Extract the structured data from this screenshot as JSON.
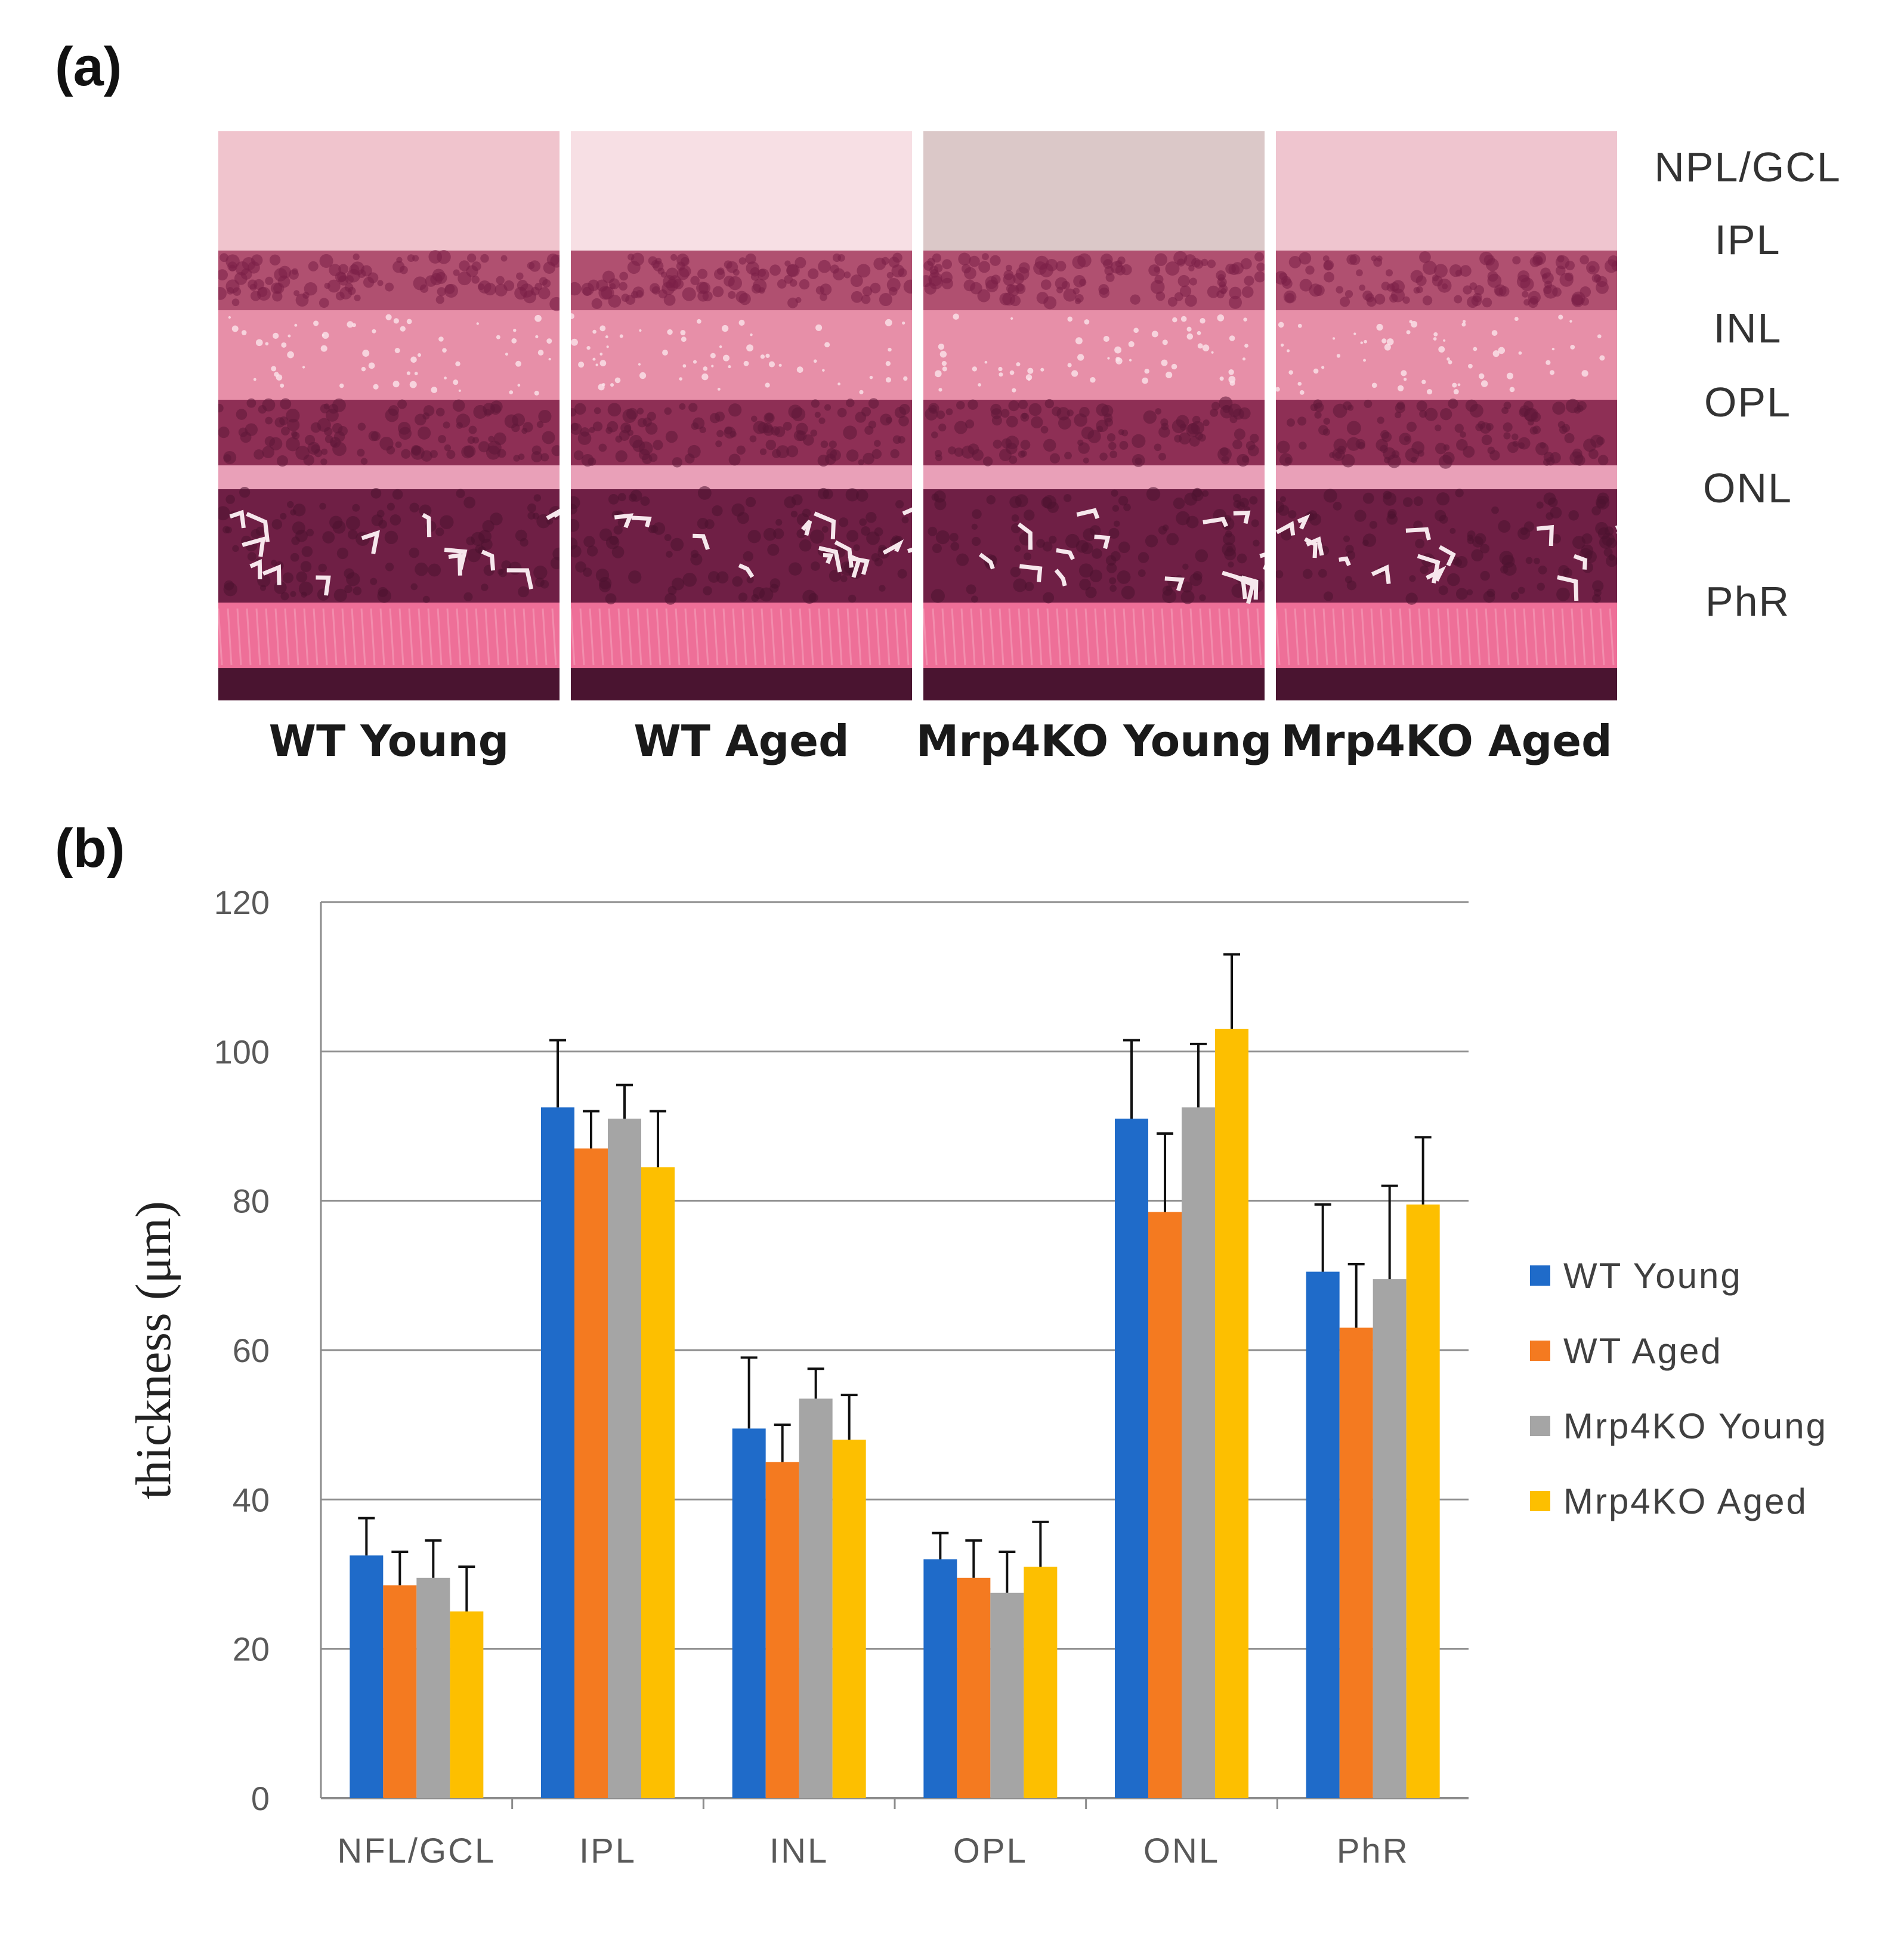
{
  "panel_a": {
    "label": "(a)",
    "captions": [
      "WT Young",
      "WT Aged",
      "Mrp4KO Young",
      "Mrp4KO Aged"
    ],
    "layer_labels": [
      "NPL/GCL",
      "IPL",
      "INL",
      "OPL",
      "ONL",
      "PhR"
    ]
  },
  "panel_b": {
    "label": "(b)"
  },
  "colors": {
    "wt_young": "#1f6bc9",
    "wt_aged": "#f47a20",
    "mrp4ko_young": "#a5a5a5",
    "mrp4ko_aged": "#fdbf00"
  },
  "chart_data": {
    "type": "bar",
    "title": "",
    "xlabel": "",
    "ylabel": "thickness (μm)",
    "ylim": [
      0,
      120
    ],
    "yticks": [
      0,
      20,
      40,
      60,
      80,
      100,
      120
    ],
    "grid": true,
    "legend_position": "right",
    "categories": [
      "NFL/GCL",
      "IPL",
      "INL",
      "OPL",
      "ONL",
      "PhR"
    ],
    "series": [
      {
        "name": "WT Young",
        "color": "#1f6bc9",
        "values": [
          32.5,
          92.5,
          49.5,
          32,
          91,
          70.5
        ],
        "errors": [
          5,
          9,
          9.5,
          3.5,
          10.5,
          9
        ]
      },
      {
        "name": "WT Aged",
        "color": "#f47a20",
        "values": [
          28.5,
          87,
          45,
          29.5,
          78.5,
          63
        ],
        "errors": [
          4.5,
          5,
          5,
          5,
          10.5,
          8.5
        ]
      },
      {
        "name": "Mrp4KO Young",
        "color": "#a5a5a5",
        "values": [
          29.5,
          91,
          53.5,
          27.5,
          92.5,
          69.5
        ],
        "errors": [
          5,
          4.5,
          4,
          5.5,
          8.5,
          12.5
        ]
      },
      {
        "name": "Mrp4KO Aged",
        "color": "#fdbf00",
        "values": [
          25,
          84.5,
          48,
          31,
          103,
          79.5
        ],
        "errors": [
          6,
          7.5,
          6,
          6,
          10,
          9
        ]
      }
    ]
  }
}
